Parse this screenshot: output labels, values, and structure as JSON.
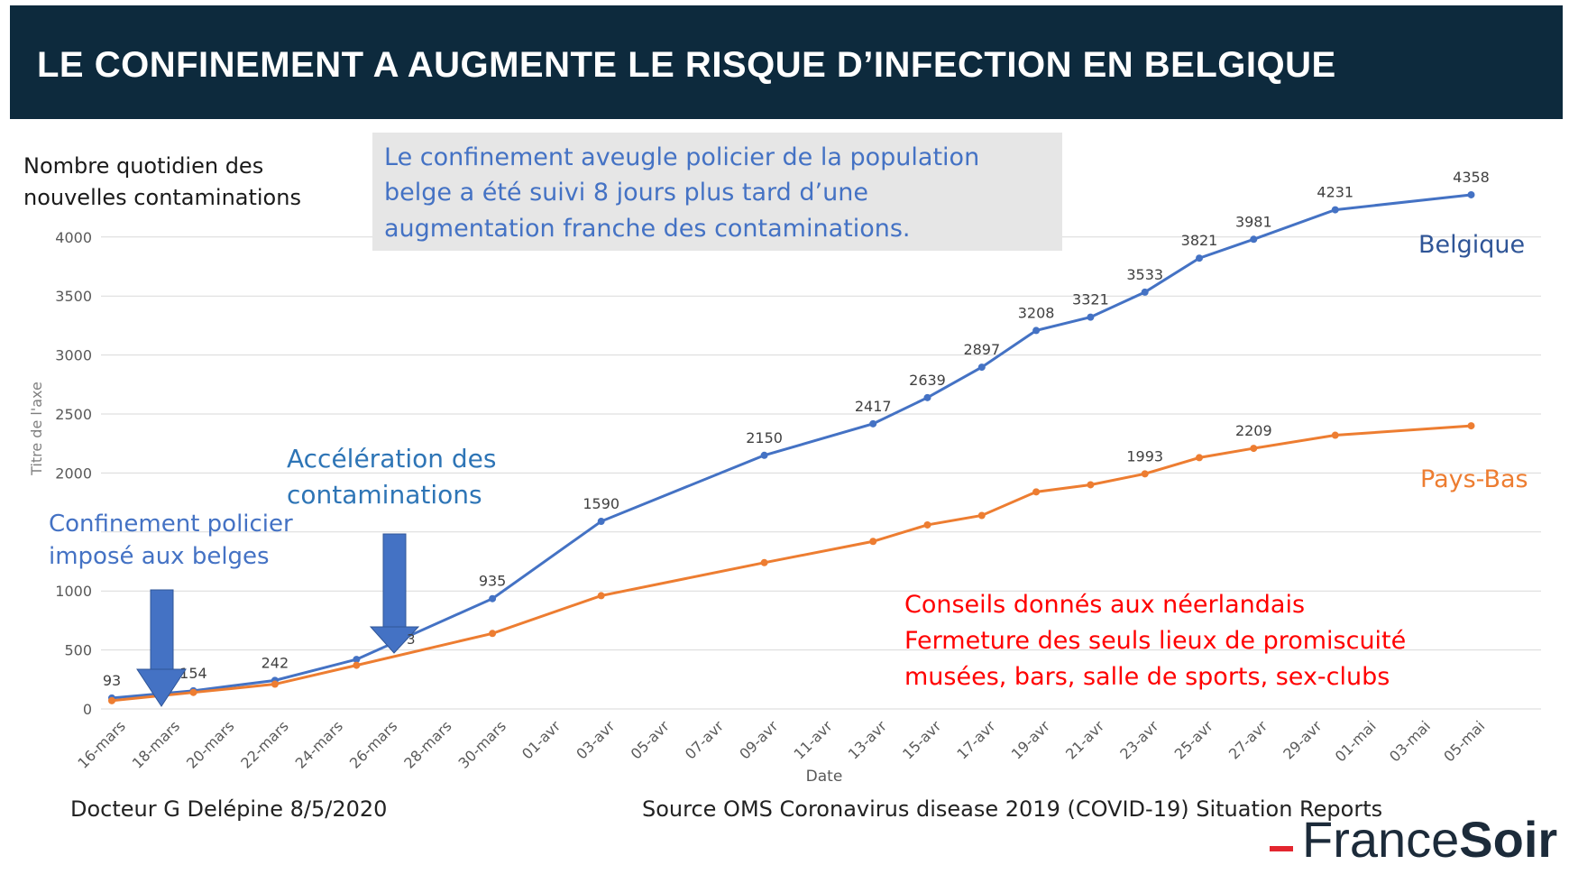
{
  "banner": {
    "title": "LE CONFINEMENT A AUGMENTE LE RISQUE D’INFECTION EN BELGIQUE"
  },
  "chart_data": {
    "type": "line",
    "ylabel_top": [
      "Nombre quotidien des",
      "nouvelles contaminations"
    ],
    "ylabel_axis": "Titre de l'axe",
    "xlabel": "Date",
    "ylim": [
      0,
      4500
    ],
    "yticks": [
      0,
      500,
      1000,
      1500,
      2000,
      2500,
      3000,
      3500,
      4000
    ],
    "ytick_labels": [
      "0",
      "500",
      "1000",
      "",
      "2000",
      "2500",
      "3000",
      "3500",
      "4000"
    ],
    "categories": [
      "16-mars",
      "18-mars",
      "20-mars",
      "22-mars",
      "24-mars",
      "26-mars",
      "28-mars",
      "30-mars",
      "01-avr",
      "03-avr",
      "05-avr",
      "07-avr",
      "09-avr",
      "11-avr",
      "13-avr",
      "15-avr",
      "17-avr",
      "19-avr",
      "21-avr",
      "23-avr",
      "25-avr",
      "27-avr",
      "29-avr",
      "01-mai",
      "03-mai",
      "05-mai"
    ],
    "grid": true,
    "series": [
      {
        "name": "Belgique",
        "color": "#4472c4",
        "x": [
          0,
          3,
          6,
          9,
          14,
          18,
          24,
          28,
          30,
          32,
          34,
          36,
          38,
          40,
          42,
          45,
          50
        ],
        "values": [
          93,
          154,
          242,
          420,
          935,
          1590,
          2150,
          2417,
          2639,
          2897,
          3208,
          3321,
          3533,
          3821,
          3981,
          4231,
          4358
        ],
        "labels": [
          "93",
          "154",
          "242",
          "",
          "935",
          "1590",
          "2150",
          "2417",
          "2639",
          "2897",
          "3208",
          "3321",
          "3533",
          "3821",
          "3981",
          "4231",
          "4358"
        ]
      },
      {
        "name": "Pays-Bas",
        "color": "#ed7d31",
        "x": [
          0,
          3,
          6,
          9,
          14,
          18,
          24,
          28,
          30,
          32,
          34,
          36,
          38,
          40,
          42,
          45,
          50
        ],
        "values": [
          70,
          140,
          210,
          370,
          640,
          960,
          1240,
          1420,
          1560,
          1640,
          1840,
          1900,
          1993,
          2130,
          2209,
          2320,
          2400
        ],
        "labels": [
          "",
          "",
          "",
          "",
          "",
          "",
          "",
          "",
          "",
          "",
          "",
          "",
          "1993",
          "",
          "2209",
          "",
          ""
        ]
      }
    ],
    "annotations": {
      "box": [
        "Le confinement  aveugle policier de la population",
        "belge a été suivi 8 jours plus tard d’une",
        "augmentation  franche des contaminations."
      ],
      "acceleration": [
        "Accélération  des",
        "contaminations"
      ],
      "confinement": [
        "Confinement policier",
        "imposé aux belges"
      ],
      "conseils": [
        "Conseils donnés aux néerlandais",
        "Fermeture  des  seuls lieux de promiscuité",
        "musées, bars, salle de sports, sex-clubs"
      ],
      "partial_label": "3"
    }
  },
  "footer": {
    "author": "Docteur G Delépine 8/5/2020",
    "source": "Source OMS Coronavirus disease 2019 (COVID-19) Situation Reports"
  },
  "logo": {
    "part1": "France",
    "part2": "Soir"
  }
}
